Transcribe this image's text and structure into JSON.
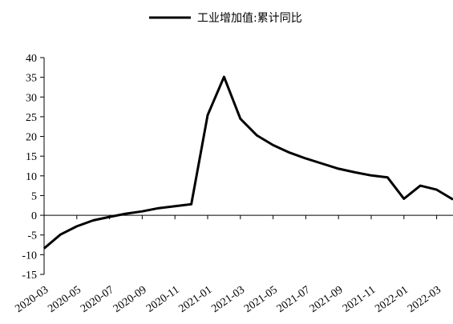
{
  "chart_data": {
    "type": "line",
    "legend": {
      "position": "top-center"
    },
    "grid": false,
    "ylim": [
      -15,
      40
    ],
    "yticks": [
      -15,
      -10,
      -5,
      0,
      5,
      10,
      15,
      20,
      25,
      30,
      35,
      40
    ],
    "xtick_labels": [
      "2020-03",
      "2020-05",
      "2020-07",
      "2020-09",
      "2020-11",
      "2021-01",
      "2021-03",
      "2021-05",
      "2021-07",
      "2021-09",
      "2021-11",
      "2022-01",
      "2022-03"
    ],
    "x": [
      "2020-03",
      "2020-04",
      "2020-05",
      "2020-06",
      "2020-07",
      "2020-08",
      "2020-09",
      "2020-10",
      "2020-11",
      "2020-12",
      "2021-01",
      "2021-02",
      "2021-03",
      "2021-04",
      "2021-05",
      "2021-06",
      "2021-07",
      "2021-08",
      "2021-09",
      "2021-10",
      "2021-11",
      "2021-12",
      "2022-01",
      "2022-02",
      "2022-03",
      "2022-04"
    ],
    "series": [
      {
        "name": "工业增加值:累计同比",
        "color": "#000000",
        "values": [
          -8.4,
          -4.9,
          -2.8,
          -1.3,
          -0.4,
          0.4,
          1.0,
          1.8,
          2.3,
          2.8,
          25.4,
          35.1,
          24.5,
          20.3,
          17.8,
          15.9,
          14.4,
          13.1,
          11.8,
          10.9,
          10.1,
          9.6,
          4.2,
          7.5,
          6.5,
          4.0
        ]
      }
    ]
  }
}
